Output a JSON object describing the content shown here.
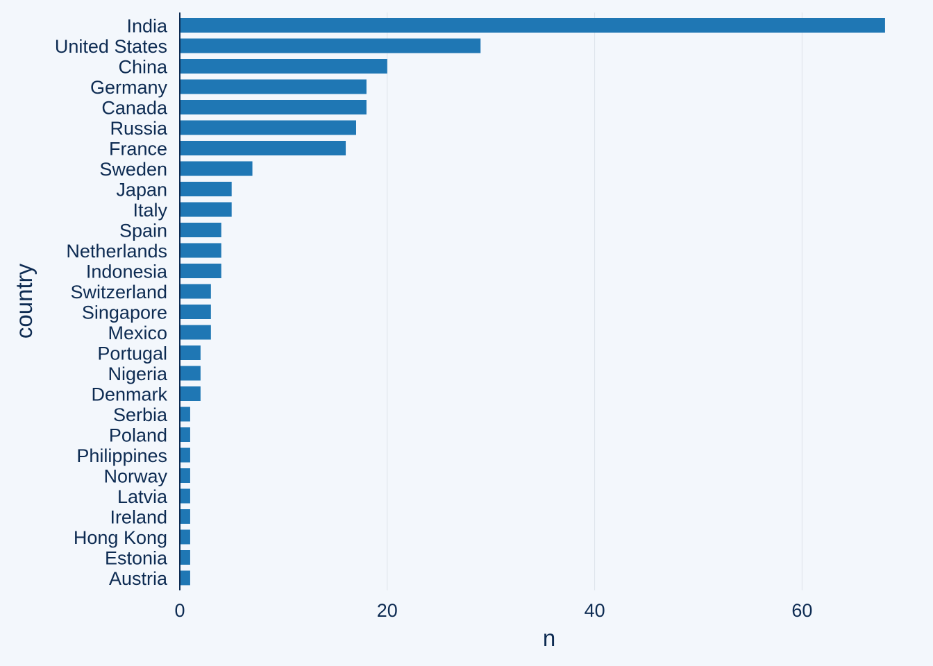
{
  "chart_data": {
    "type": "bar",
    "orientation": "horizontal",
    "xlabel": "n",
    "ylabel": "country",
    "xlim": [
      0,
      69
    ],
    "x_ticks": [
      "0",
      "20",
      "40",
      "60"
    ],
    "grid": "vertical",
    "legend": "none",
    "colors": {
      "background": "#f3f7fc",
      "bar": "#1f77b4",
      "text": "#0d2b52",
      "grid": "#dde3ea",
      "axis": "#0d2b52"
    },
    "categories": [
      "India",
      "United States",
      "China",
      "Germany",
      "Canada",
      "Russia",
      "France",
      "Sweden",
      "Japan",
      "Italy",
      "Spain",
      "Netherlands",
      "Indonesia",
      "Switzerland",
      "Singapore",
      "Mexico",
      "Portugal",
      "Nigeria",
      "Denmark",
      "Serbia",
      "Poland",
      "Philippines",
      "Norway",
      "Latvia",
      "Ireland",
      "Hong Kong",
      "Estonia",
      "Austria"
    ],
    "values": [
      68,
      29,
      20,
      18,
      18,
      17,
      16,
      7,
      5,
      5,
      4,
      4,
      4,
      3,
      3,
      3,
      2,
      2,
      2,
      1,
      1,
      1,
      1,
      1,
      1,
      1,
      1,
      1
    ]
  }
}
